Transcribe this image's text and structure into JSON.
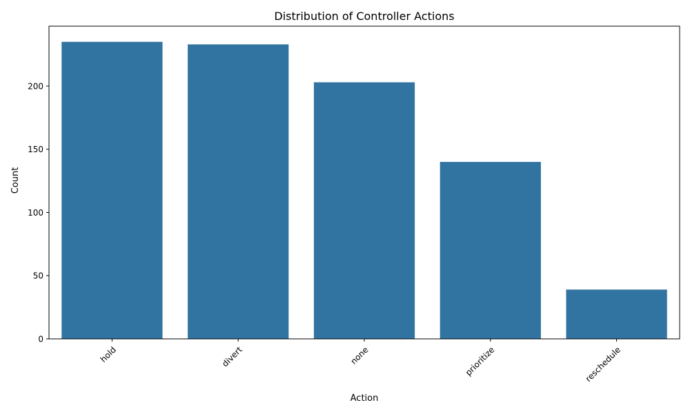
{
  "chart_data": {
    "type": "bar",
    "title": "Distribution of Controller Actions",
    "xlabel": "Action",
    "ylabel": "Count",
    "categories": [
      "hold",
      "divert",
      "none",
      "prioritize",
      "reschedule"
    ],
    "values": [
      235,
      233,
      203,
      140,
      39
    ],
    "ylim": [
      0,
      247.4
    ],
    "yticks": [
      0,
      50,
      100,
      150,
      200
    ],
    "xtick_rotation_deg": 45,
    "grid": false,
    "legend": "none",
    "bar_color": "#3274a1"
  }
}
